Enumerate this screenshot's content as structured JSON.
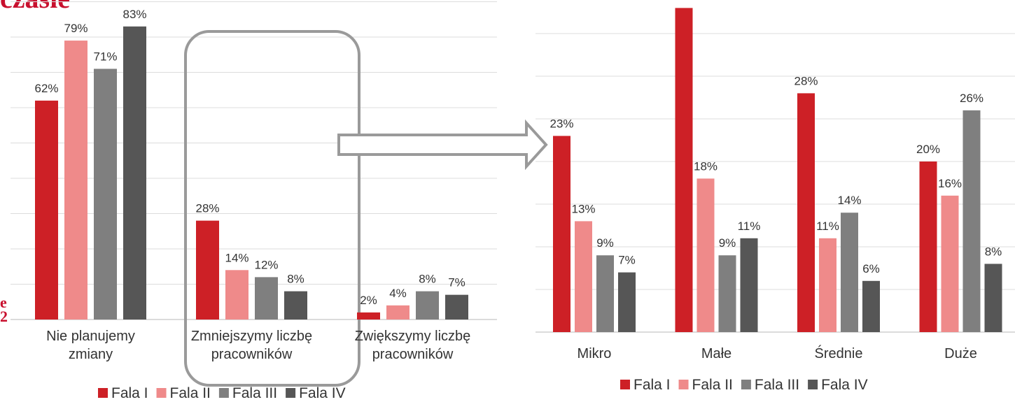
{
  "page": {
    "title_fragment": "czasie",
    "side_fragment_1": "e",
    "side_fragment_2": "2"
  },
  "colors": {
    "fala1": "#cd2026",
    "fala2": "#ef8a8a",
    "fala3": "#7f7f7f",
    "fala4": "#565656",
    "gridline": "#dcdcdc",
    "outline": "#9a9a9a",
    "label": "#333333"
  },
  "chart_data": [
    {
      "type": "bar",
      "title": "",
      "categories": [
        "Nie planujemy\nzmiany",
        "Zmniejszymy liczbę\npracowników",
        "Zwiększymy liczbę\npracowników"
      ],
      "series": [
        {
          "name": "Fala I",
          "values": [
            62,
            28,
            2
          ]
        },
        {
          "name": "Fala II",
          "values": [
            79,
            14,
            4
          ]
        },
        {
          "name": "Fala III",
          "values": [
            71,
            12,
            8
          ]
        },
        {
          "name": "Fala IV",
          "values": [
            83,
            8,
            7
          ]
        }
      ],
      "value_labels": [
        [
          "62%",
          "28%",
          "2%"
        ],
        [
          "79%",
          "14%",
          "4%"
        ],
        [
          "71%",
          "12%",
          "8%"
        ],
        [
          "83%",
          "8%",
          "7%"
        ]
      ],
      "ylim": [
        0,
        90
      ],
      "grid": true,
      "legend": "bottom",
      "highlighted_category": "Zmniejszymy liczbę\npracowników"
    },
    {
      "type": "bar",
      "title": "",
      "categories": [
        "Mikro",
        "Małe",
        "Średnie",
        "Duże"
      ],
      "series": [
        {
          "name": "Fala I",
          "values": [
            23,
            38,
            28,
            20
          ]
        },
        {
          "name": "Fala II",
          "values": [
            13,
            18,
            11,
            16
          ]
        },
        {
          "name": "Fala III",
          "values": [
            9,
            9,
            14,
            26
          ]
        },
        {
          "name": "Fala IV",
          "values": [
            7,
            11,
            6,
            8
          ]
        }
      ],
      "value_labels": [
        [
          "23%",
          "",
          "28%",
          "20%"
        ],
        [
          "13%",
          "18%",
          "11%",
          "16%"
        ],
        [
          "9%",
          "9%",
          "14%",
          "26%"
        ],
        [
          "7%",
          "11%",
          "6%",
          "8%"
        ]
      ],
      "ylim": [
        0,
        38
      ],
      "grid": true,
      "legend": "bottom"
    }
  ]
}
